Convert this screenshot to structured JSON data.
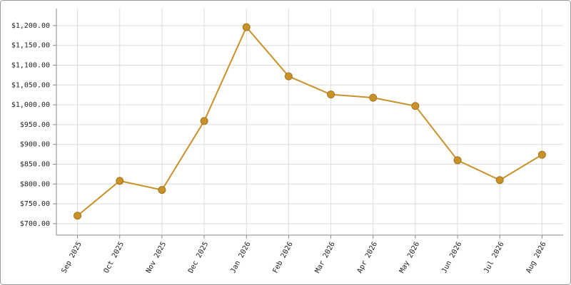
{
  "chart_data": {
    "type": "line",
    "categories": [
      "Sep 2025",
      "Oct 2025",
      "Nov 2025",
      "Dec 2025",
      "Jan 2026",
      "Feb 2026",
      "Mar 2026",
      "Apr 2026",
      "May 2026",
      "Jun 2026",
      "Jul 2026",
      "Aug 2026"
    ],
    "series": [
      {
        "color": "#c8922a",
        "values": [
          720,
          808,
          785,
          959,
          1196,
          1072,
          1026,
          1018,
          997,
          860,
          810,
          874
        ]
      }
    ],
    "ylim": [
      671,
      1243
    ],
    "yticks": [
      {
        "value": 700,
        "label": "$700.00"
      },
      {
        "value": 750,
        "label": "$750.00"
      },
      {
        "value": 800,
        "label": "$800.00"
      },
      {
        "value": 850,
        "label": "$850.00"
      },
      {
        "value": 900,
        "label": "$900.00"
      },
      {
        "value": 950,
        "label": "$950.00"
      },
      {
        "value": 1000,
        "label": "$1,000.00"
      },
      {
        "value": 1050,
        "label": "$1,050.00"
      },
      {
        "value": 1100,
        "label": "$1,100.00"
      },
      {
        "value": 1150,
        "label": "$1,150.00"
      },
      {
        "value": 1200,
        "label": "$1,200.00"
      }
    ],
    "grid": true
  }
}
